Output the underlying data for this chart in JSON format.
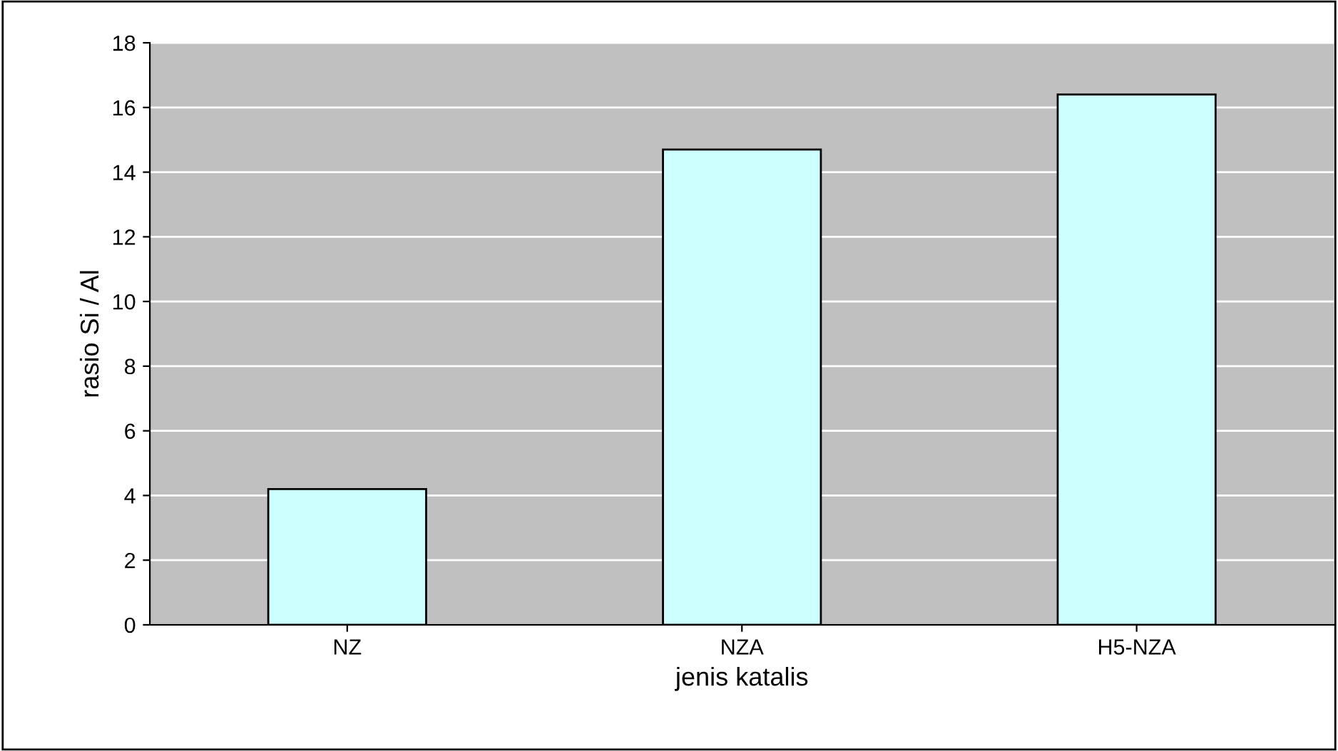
{
  "chart_data": {
    "type": "bar",
    "xlabel": "jenis katalis",
    "ylabel": "rasio Si / Al",
    "categories": [
      "NZ",
      "NZA",
      "H5-NZA"
    ],
    "series": [
      {
        "color": "#ccffff",
        "values": [
          4.2,
          14.7,
          16.4
        ]
      }
    ],
    "ylim": [
      0,
      18
    ],
    "yticks": [
      0,
      2,
      4,
      6,
      8,
      10,
      12,
      14,
      16,
      18
    ],
    "grid": "y",
    "legend": false
  }
}
